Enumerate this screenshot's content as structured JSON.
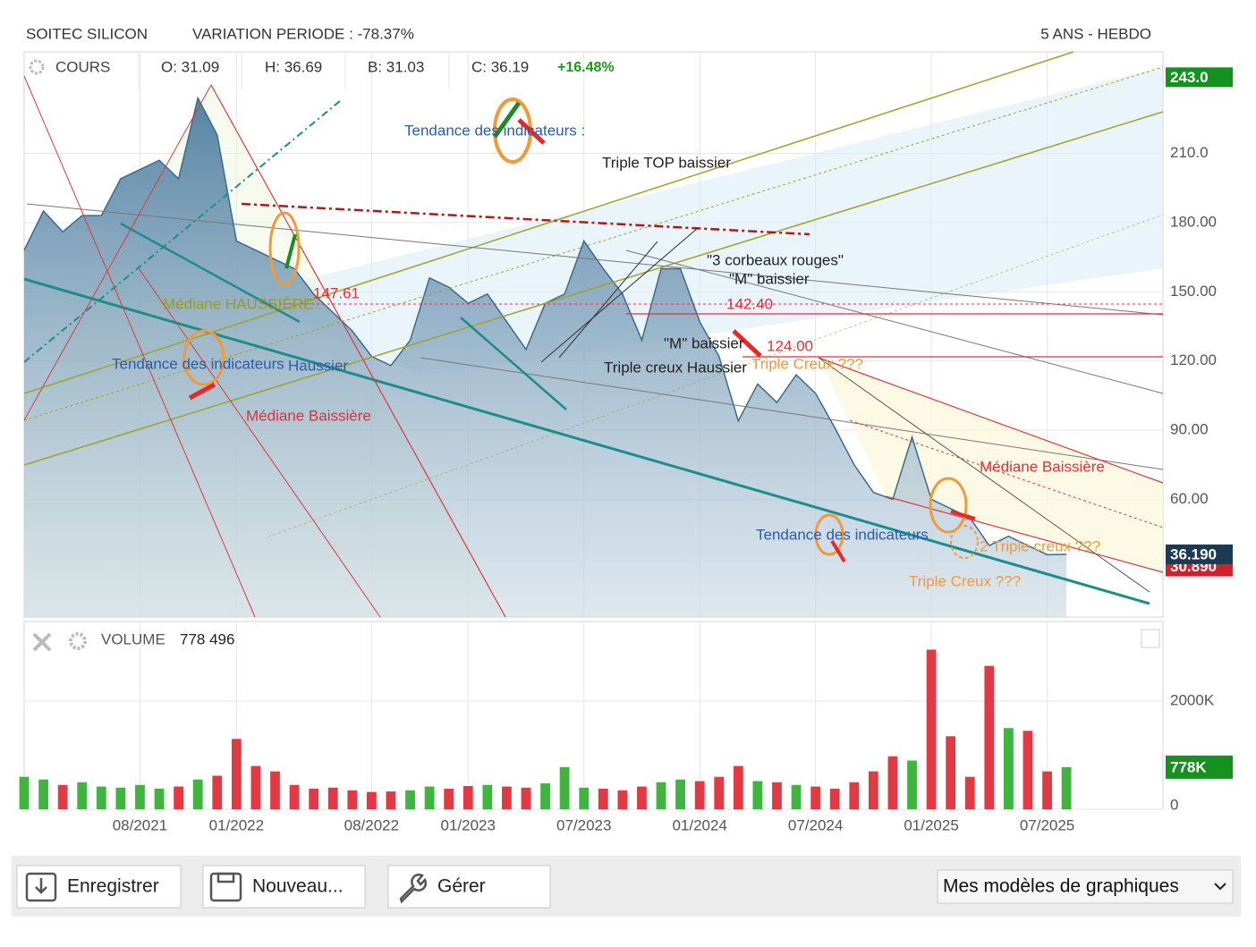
{
  "header": {
    "instrument": "SOITEC SILICON",
    "variation": "VARIATION PERIODE : -78.37%",
    "period": "5 ANS - HEBDO"
  },
  "chart_data": [
    {
      "type": "area",
      "series_name": "COURS",
      "ohlc": [
        "O: 31.09",
        "H: 36.69",
        "B: 31.03",
        "C: 36.19"
      ],
      "change": "+16.48%",
      "x": [
        "02/2021",
        "03/2021",
        "04/2021",
        "05/2021",
        "06/2021",
        "07/2021",
        "08/2021",
        "09/2021",
        "10/2021",
        "11/2021",
        "12/2021",
        "01/2022",
        "02/2022",
        "03/2022",
        "04/2022",
        "05/2022",
        "06/2022",
        "07/2022",
        "08/2022",
        "09/2022",
        "10/2022",
        "11/2022",
        "12/2022",
        "01/2023",
        "02/2023",
        "03/2023",
        "04/2023",
        "05/2023",
        "06/2023",
        "07/2023",
        "08/2023",
        "09/2023",
        "10/2023",
        "11/2023",
        "12/2023",
        "01/2024",
        "02/2024",
        "03/2024",
        "04/2024",
        "05/2024",
        "06/2024",
        "07/2024",
        "08/2024",
        "09/2024",
        "10/2024",
        "11/2024",
        "12/2024",
        "01/2025",
        "02/2025",
        "03/2025",
        "04/2025",
        "05/2025",
        "06/2025",
        "07/2025",
        "08/2025"
      ],
      "values": [
        168,
        185,
        176,
        183,
        183,
        199,
        203,
        207,
        199,
        234,
        218,
        172,
        168,
        164,
        160,
        149,
        141,
        133,
        122,
        118,
        129,
        156,
        152,
        145,
        149,
        137,
        125,
        145,
        149,
        172,
        160,
        149,
        129,
        160,
        160,
        137,
        122,
        94,
        110,
        102,
        114,
        106,
        91,
        75,
        63,
        60,
        87,
        60,
        56,
        52,
        40,
        44,
        40,
        36,
        36.19
      ],
      "color": "#3e6a8a",
      "xlim": [
        "02/2021",
        "01/2026"
      ],
      "ylim": [
        9,
        254
      ],
      "yticks": [
        {
          "value": 210,
          "label": "210.0"
        },
        {
          "value": 180,
          "label": "180.00"
        },
        {
          "value": 150,
          "label": "150.00"
        },
        {
          "value": 120,
          "label": "120.00"
        },
        {
          "value": 90,
          "label": "90.00"
        },
        {
          "value": 60,
          "label": "60.00"
        }
      ],
      "price_markers": [
        {
          "value": 243,
          "label": "243.0",
          "color": "#14911e"
        },
        {
          "value": 30.89,
          "label": "30.890",
          "color": "#d0202a"
        },
        {
          "value": 36.19,
          "label": "36.190",
          "color": "#1c3a52"
        }
      ],
      "grid": true,
      "annotations": [
        {
          "text": "Tendance des indicateurs :",
          "color": "#2a5caa"
        },
        {
          "text": "Triple TOP baissier",
          "color": "#222222"
        },
        {
          "text": "Médiane HAUSSIÈRE",
          "color": "#9a9a20"
        },
        {
          "text": "147.61",
          "color": "#e0303a"
        },
        {
          "text": "142.40",
          "color": "#e0303a"
        },
        {
          "text": "124.00",
          "color": "#e0303a"
        },
        {
          "text": "\"3 corbeaux rouges\"",
          "color": "#222222"
        },
        {
          "text": "\"M\" baissier",
          "color": "#222222"
        },
        {
          "text": "\"M\" baissier",
          "color": "#222222"
        },
        {
          "text": "Triple creux Haussier",
          "color": "#222222"
        },
        {
          "text": "Triple Creux ???",
          "color": "#f29a3a"
        },
        {
          "text": "Tendance des indicateurs",
          "color": "#2a5caa"
        },
        {
          "text": "Haussier",
          "color": "#2a5caa"
        },
        {
          "text": "Médiane Baissière",
          "color": "#e0303a"
        },
        {
          "text": "Médiane Baissière",
          "color": "#e0303a"
        },
        {
          "text": "Tendance des indicateurs",
          "color": "#2a5caa"
        },
        {
          "text": "2 Triple creux ???",
          "color": "#f29a3a"
        },
        {
          "text": "Triple Creux ???",
          "color": "#f29a3a"
        }
      ]
    },
    {
      "type": "bar",
      "title": "VOLUME",
      "header_value": "778 496",
      "x": [
        "02/2021",
        "03/2021",
        "04/2021",
        "05/2021",
        "06/2021",
        "07/2021",
        "08/2021",
        "09/2021",
        "10/2021",
        "11/2021",
        "12/2021",
        "01/2022",
        "02/2022",
        "03/2022",
        "04/2022",
        "05/2022",
        "06/2022",
        "07/2022",
        "08/2022",
        "09/2022",
        "10/2022",
        "11/2022",
        "12/2022",
        "01/2023",
        "02/2023",
        "03/2023",
        "04/2023",
        "05/2023",
        "06/2023",
        "07/2023",
        "08/2023",
        "09/2023",
        "10/2023",
        "11/2023",
        "12/2023",
        "01/2024",
        "02/2024",
        "03/2024",
        "04/2024",
        "05/2024",
        "06/2024",
        "07/2024",
        "08/2024",
        "09/2024",
        "10/2024",
        "11/2024",
        "12/2024",
        "01/2025",
        "02/2025",
        "03/2025",
        "04/2025",
        "05/2025",
        "06/2025",
        "07/2025",
        "08/2025"
      ],
      "values": [
        600000,
        550000,
        450000,
        500000,
        420000,
        400000,
        450000,
        380000,
        420000,
        550000,
        620000,
        1300000,
        800000,
        700000,
        450000,
        380000,
        400000,
        350000,
        320000,
        330000,
        350000,
        420000,
        380000,
        430000,
        450000,
        420000,
        400000,
        480000,
        780000,
        400000,
        380000,
        350000,
        420000,
        500000,
        550000,
        520000,
        600000,
        800000,
        520000,
        500000,
        450000,
        420000,
        380000,
        500000,
        700000,
        980000,
        900000,
        2950000,
        1350000,
        600000,
        2650000,
        1500000,
        1450000,
        700000,
        778496
      ],
      "up_color": "#3fb43f",
      "down_color": "#e23a44",
      "xlim": [
        "02/2021",
        "01/2026"
      ],
      "ylim": [
        0,
        3470000
      ],
      "yticks": [
        {
          "value": 2000000,
          "label": "2000K"
        },
        0
      ],
      "xticks": [
        "08/2021",
        "01/2022",
        "08/2022",
        "01/2023",
        "07/2023",
        "01/2024",
        "07/2024",
        "01/2025",
        "07/2025"
      ],
      "last_marker": {
        "value": 778496,
        "label": "778K",
        "color": "#14911e"
      },
      "grid": true
    }
  ],
  "toolbar": {
    "buttons": [
      "Enregistrer",
      "Nouveau...",
      "Gérer"
    ],
    "select": "Mes modèles de graphiques"
  }
}
